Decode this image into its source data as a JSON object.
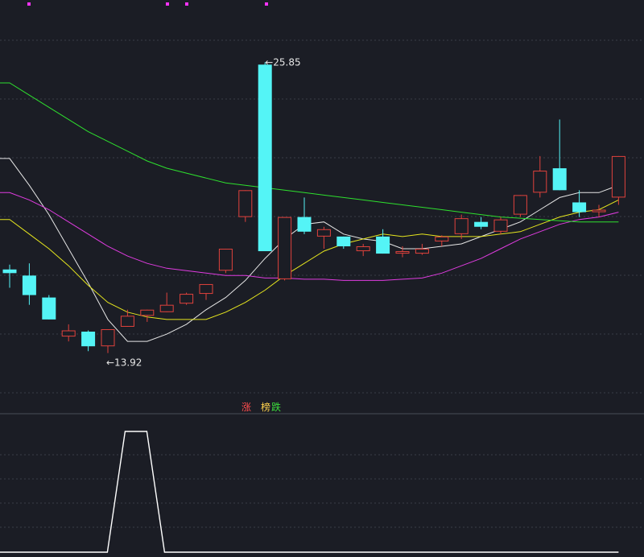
{
  "chart_data": {
    "type": "candlestick",
    "candles": [
      {
        "o": 17.35,
        "c": 17.2,
        "h": 17.55,
        "l": 16.6,
        "color": "cyan"
      },
      {
        "o": 17.1,
        "c": 16.3,
        "h": 17.6,
        "l": 15.9,
        "color": "cyan"
      },
      {
        "o": 16.2,
        "c": 15.3,
        "h": 16.3,
        "l": 15.3,
        "color": "cyan"
      },
      {
        "o": 14.6,
        "c": 14.85,
        "h": 15.1,
        "l": 14.4,
        "color": "red"
      },
      {
        "o": 14.8,
        "c": 14.2,
        "h": 14.85,
        "l": 14.0,
        "color": "cyan"
      },
      {
        "o": 14.2,
        "c": 14.9,
        "h": 14.9,
        "l": 13.92,
        "color": "red"
      },
      {
        "o": 15.0,
        "c": 15.45,
        "h": 15.7,
        "l": 15.0,
        "color": "red"
      },
      {
        "o": 15.45,
        "c": 15.7,
        "h": 15.7,
        "l": 15.2,
        "color": "red"
      },
      {
        "o": 15.6,
        "c": 15.9,
        "h": 16.4,
        "l": 15.6,
        "color": "red"
      },
      {
        "o": 15.95,
        "c": 16.35,
        "h": 16.4,
        "l": 15.9,
        "color": "red"
      },
      {
        "o": 16.35,
        "c": 16.75,
        "h": 16.75,
        "l": 16.1,
        "color": "red"
      },
      {
        "o": 17.3,
        "c": 18.2,
        "h": 18.2,
        "l": 17.2,
        "color": "red"
      },
      {
        "o": 19.5,
        "c": 20.6,
        "h": 20.6,
        "l": 19.3,
        "color": "red"
      },
      {
        "o": 25.75,
        "c": 18.1,
        "h": 25.85,
        "l": 18.1,
        "color": "cyan"
      },
      {
        "o": 16.95,
        "c": 19.5,
        "h": 19.5,
        "l": 16.9,
        "color": "red"
      },
      {
        "o": 19.5,
        "c": 18.9,
        "h": 20.3,
        "l": 18.8,
        "color": "cyan"
      },
      {
        "o": 18.7,
        "c": 19.0,
        "h": 19.1,
        "l": 18.2,
        "color": "red"
      },
      {
        "o": 18.7,
        "c": 18.3,
        "h": 18.7,
        "l": 18.2,
        "color": "cyan"
      },
      {
        "o": 18.1,
        "c": 18.3,
        "h": 18.4,
        "l": 17.9,
        "color": "red"
      },
      {
        "o": 18.7,
        "c": 18.0,
        "h": 19.0,
        "l": 18.0,
        "color": "cyan"
      },
      {
        "o": 18.0,
        "c": 18.1,
        "h": 18.3,
        "l": 17.85,
        "color": "red"
      },
      {
        "o": 18.0,
        "c": 18.2,
        "h": 18.4,
        "l": 17.95,
        "color": "red"
      },
      {
        "o": 18.5,
        "c": 18.7,
        "h": 18.75,
        "l": 18.3,
        "color": "red"
      },
      {
        "o": 18.8,
        "c": 19.45,
        "h": 19.6,
        "l": 18.6,
        "color": "red"
      },
      {
        "o": 19.3,
        "c": 19.1,
        "h": 19.5,
        "l": 19.0,
        "color": "cyan"
      },
      {
        "o": 18.9,
        "c": 19.4,
        "h": 19.5,
        "l": 18.8,
        "color": "red"
      },
      {
        "o": 19.6,
        "c": 20.4,
        "h": 20.4,
        "l": 19.5,
        "color": "red"
      },
      {
        "o": 20.5,
        "c": 21.4,
        "h": 22.0,
        "l": 20.3,
        "color": "red"
      },
      {
        "o": 21.5,
        "c": 20.6,
        "h": 23.5,
        "l": 20.6,
        "color": "cyan"
      },
      {
        "o": 20.1,
        "c": 19.7,
        "h": 20.6,
        "l": 19.5,
        "color": "cyan"
      },
      {
        "o": 19.7,
        "c": 19.8,
        "h": 20.0,
        "l": 19.5,
        "color": "red"
      },
      {
        "o": 20.3,
        "c": 22.0,
        "h": 22.0,
        "l": 20.0,
        "color": "red"
      }
    ],
    "ma_lines": [
      {
        "color": "#e6e6e6",
        "values": [
          21.9,
          20.8,
          19.6,
          18.2,
          16.8,
          15.3,
          14.4,
          14.4,
          14.7,
          15.1,
          15.7,
          16.2,
          16.9,
          17.8,
          18.6,
          19.2,
          19.3,
          18.8,
          18.6,
          18.5,
          18.2,
          18.2,
          18.3,
          18.4,
          18.7,
          19.0,
          19.3,
          19.8,
          20.3,
          20.5,
          20.5,
          20.8
        ]
      },
      {
        "color": "#e6e61e",
        "values": [
          19.4,
          18.8,
          18.2,
          17.5,
          16.7,
          16.0,
          15.6,
          15.4,
          15.3,
          15.3,
          15.3,
          15.6,
          16.0,
          16.5,
          17.1,
          17.6,
          18.1,
          18.4,
          18.6,
          18.8,
          18.7,
          18.8,
          18.7,
          18.7,
          18.7,
          18.8,
          18.9,
          19.2,
          19.5,
          19.7,
          19.8,
          20.2
        ]
      },
      {
        "color": "#e03ce0",
        "values": [
          20.5,
          20.2,
          19.8,
          19.3,
          18.8,
          18.3,
          17.9,
          17.6,
          17.4,
          17.3,
          17.2,
          17.1,
          17.1,
          17.0,
          17.0,
          16.95,
          16.95,
          16.9,
          16.9,
          16.9,
          16.95,
          17.0,
          17.2,
          17.5,
          17.8,
          18.2,
          18.6,
          18.9,
          19.2,
          19.4,
          19.5,
          19.7
        ]
      },
      {
        "color": "#2ee02e",
        "values": [
          25.0,
          24.5,
          24.0,
          23.5,
          23.0,
          22.6,
          22.2,
          21.8,
          21.5,
          21.3,
          21.1,
          20.9,
          20.8,
          20.7,
          20.6,
          20.5,
          20.4,
          20.3,
          20.2,
          20.1,
          20.0,
          19.9,
          19.8,
          19.7,
          19.6,
          19.5,
          19.45,
          19.4,
          19.35,
          19.3,
          19.3,
          19.3
        ]
      }
    ],
    "annotations": {
      "max_label": "25.85",
      "min_label": "13.92",
      "max_index": 13,
      "min_index": 5
    },
    "legend": {
      "zhang": "涨",
      "bang": "榜",
      "die": "跌"
    },
    "lower_indicator": {
      "color": "#ffffff",
      "values": [
        0,
        0,
        0,
        0,
        0,
        0,
        1,
        0,
        0,
        0,
        0,
        0,
        0,
        0,
        0,
        0,
        0,
        0,
        0,
        0,
        0,
        0,
        0,
        0,
        0,
        0,
        0,
        0,
        0,
        0,
        0,
        0
      ]
    },
    "top_markers": [
      1,
      8,
      9,
      13
    ],
    "grid": true,
    "colors": {
      "background": "#1b1d25",
      "up": "#e0423c",
      "down": "#54f4f6",
      "grid": "#3a3d48",
      "marker": "#ff33ff"
    }
  }
}
